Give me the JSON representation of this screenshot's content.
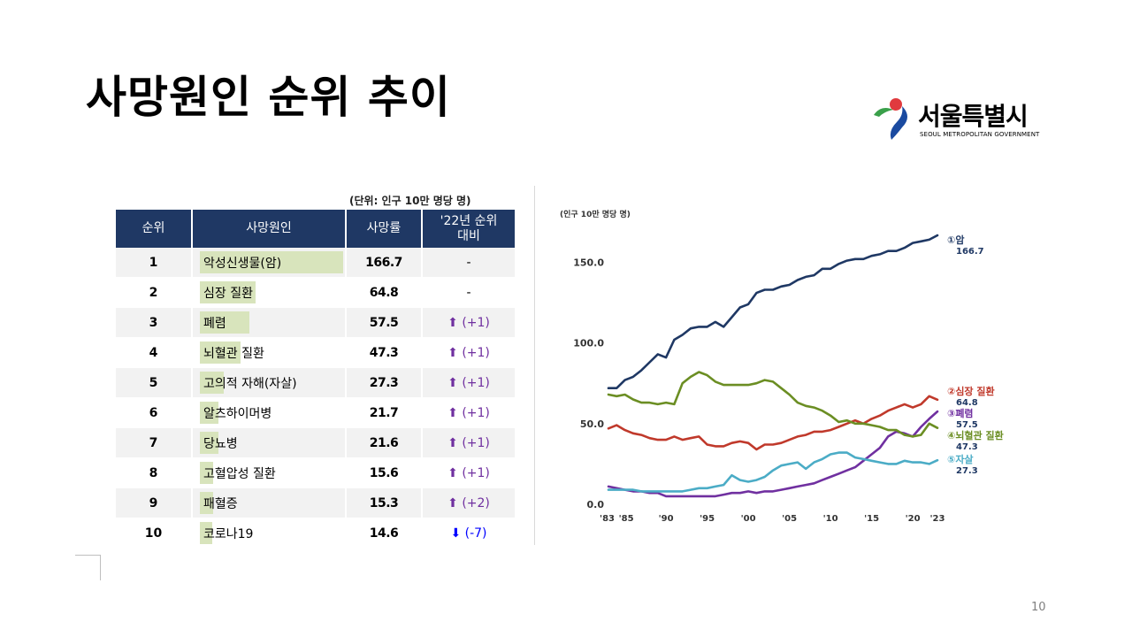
{
  "page": {
    "title": "사망원인 순위 추이",
    "page_number": "10"
  },
  "logo": {
    "name": "서울특별시",
    "sub": "SEOUL METROPOLITAN GOVERNMENT"
  },
  "table": {
    "unit": "(단위: 인구 10만 명당 명)",
    "headers": [
      "순위",
      "사망원인",
      "사망률",
      "'22년 순위\n대비"
    ],
    "max_rate": 166.7,
    "rows": [
      {
        "rank": "1",
        "cause": "악성신생물(암)",
        "rate": "166.7",
        "change": "-",
        "dir": "none"
      },
      {
        "rank": "2",
        "cause": "심장 질환",
        "rate": "64.8",
        "change": "-",
        "dir": "none"
      },
      {
        "rank": "3",
        "cause": "폐렴",
        "rate": "57.5",
        "change": "(+1)",
        "dir": "up"
      },
      {
        "rank": "4",
        "cause": "뇌혈관 질환",
        "rate": "47.3",
        "change": "(+1)",
        "dir": "up"
      },
      {
        "rank": "5",
        "cause": "고의적 자해(자살)",
        "rate": "27.3",
        "change": "(+1)",
        "dir": "up"
      },
      {
        "rank": "6",
        "cause": "알츠하이머병",
        "rate": "21.7",
        "change": "(+1)",
        "dir": "up"
      },
      {
        "rank": "7",
        "cause": "당뇨병",
        "rate": "21.6",
        "change": "(+1)",
        "dir": "up"
      },
      {
        "rank": "8",
        "cause": "고혈압성 질환",
        "rate": "15.6",
        "change": "(+1)",
        "dir": "up"
      },
      {
        "rank": "9",
        "cause": "패혈증",
        "rate": "15.3",
        "change": "(+2)",
        "dir": "up"
      },
      {
        "rank": "10",
        "cause": "코로나19",
        "rate": "14.6",
        "change": "(-7)",
        "dir": "down"
      }
    ]
  },
  "chart_data": {
    "type": "line",
    "title": "",
    "ylabel": "(인구 10만 명당 명)",
    "xlabel": "",
    "ylim": [
      0,
      170
    ],
    "yticks": [
      0,
      50,
      100,
      150
    ],
    "ytick_labels": [
      "0.0",
      "50.0",
      "100.0",
      "150.0"
    ],
    "x": [
      1983,
      1984,
      1985,
      1986,
      1987,
      1988,
      1989,
      1990,
      1991,
      1992,
      1993,
      1994,
      1995,
      1996,
      1997,
      1998,
      1999,
      2000,
      2001,
      2002,
      2003,
      2004,
      2005,
      2006,
      2007,
      2008,
      2009,
      2010,
      2011,
      2012,
      2013,
      2014,
      2015,
      2016,
      2017,
      2018,
      2019,
      2020,
      2021,
      2022,
      2023
    ],
    "xtick_positions": [
      1983,
      1985,
      1990,
      1995,
      2000,
      2005,
      2010,
      2015,
      2020,
      2023
    ],
    "xtick_labels": [
      "'83",
      "'85",
      "'90",
      "'95",
      "'00",
      "'05",
      "'10",
      "'15",
      "'20",
      "'23"
    ],
    "grid": false,
    "series": [
      {
        "name": "①암",
        "label": "166.7",
        "color": "#1f3864",
        "values": [
          72,
          72,
          77,
          79,
          83,
          88,
          93,
          91,
          102,
          105,
          109,
          110,
          110,
          113,
          110,
          116,
          122,
          124,
          131,
          133,
          133,
          135,
          136,
          139,
          141,
          142,
          146,
          146,
          149,
          151,
          152,
          152,
          154,
          155,
          157,
          157,
          159,
          162,
          163,
          164,
          166.7
        ]
      },
      {
        "name": "②심장 질환",
        "label": "64.8",
        "color": "#c0392b",
        "values": [
          47,
          49,
          46,
          44,
          43,
          41,
          40,
          40,
          42,
          40,
          41,
          42,
          37,
          36,
          36,
          38,
          39,
          38,
          34,
          37,
          37,
          38,
          40,
          42,
          43,
          45,
          45,
          46,
          48,
          50,
          52,
          50,
          53,
          55,
          58,
          60,
          62,
          60,
          62,
          67,
          64.8
        ]
      },
      {
        "name": "③폐렴",
        "label": "57.5",
        "color": "#7030a0",
        "values": [
          11,
          10,
          9,
          8,
          8,
          7,
          7,
          5,
          5,
          5,
          5,
          5,
          5,
          5,
          6,
          7,
          7,
          8,
          7,
          8,
          8,
          9,
          10,
          11,
          12,
          13,
          15,
          17,
          19,
          21,
          23,
          27,
          31,
          35,
          42,
          45,
          44,
          42,
          48,
          53,
          57.5
        ]
      },
      {
        "name": "④뇌혈관 질환",
        "label": "47.3",
        "color": "#6b8e23",
        "values": [
          68,
          67,
          68,
          65,
          63,
          63,
          62,
          63,
          62,
          75,
          79,
          82,
          80,
          76,
          74,
          74,
          74,
          74,
          75,
          77,
          76,
          72,
          68,
          63,
          61,
          60,
          58,
          55,
          51,
          52,
          50,
          50,
          49,
          48,
          46,
          46,
          43,
          42,
          43,
          50,
          47.3
        ]
      },
      {
        "name": "⑤자살",
        "label": "27.3",
        "color": "#4bacc6",
        "values": [
          9,
          9,
          9,
          9,
          8,
          8,
          8,
          8,
          8,
          8,
          9,
          10,
          10,
          11,
          12,
          18,
          15,
          14,
          15,
          17,
          21,
          24,
          25,
          26,
          22,
          26,
          28,
          31,
          32,
          32,
          29,
          28,
          27,
          26,
          25,
          25,
          27,
          26,
          26,
          25,
          27.3
        ]
      }
    ]
  }
}
